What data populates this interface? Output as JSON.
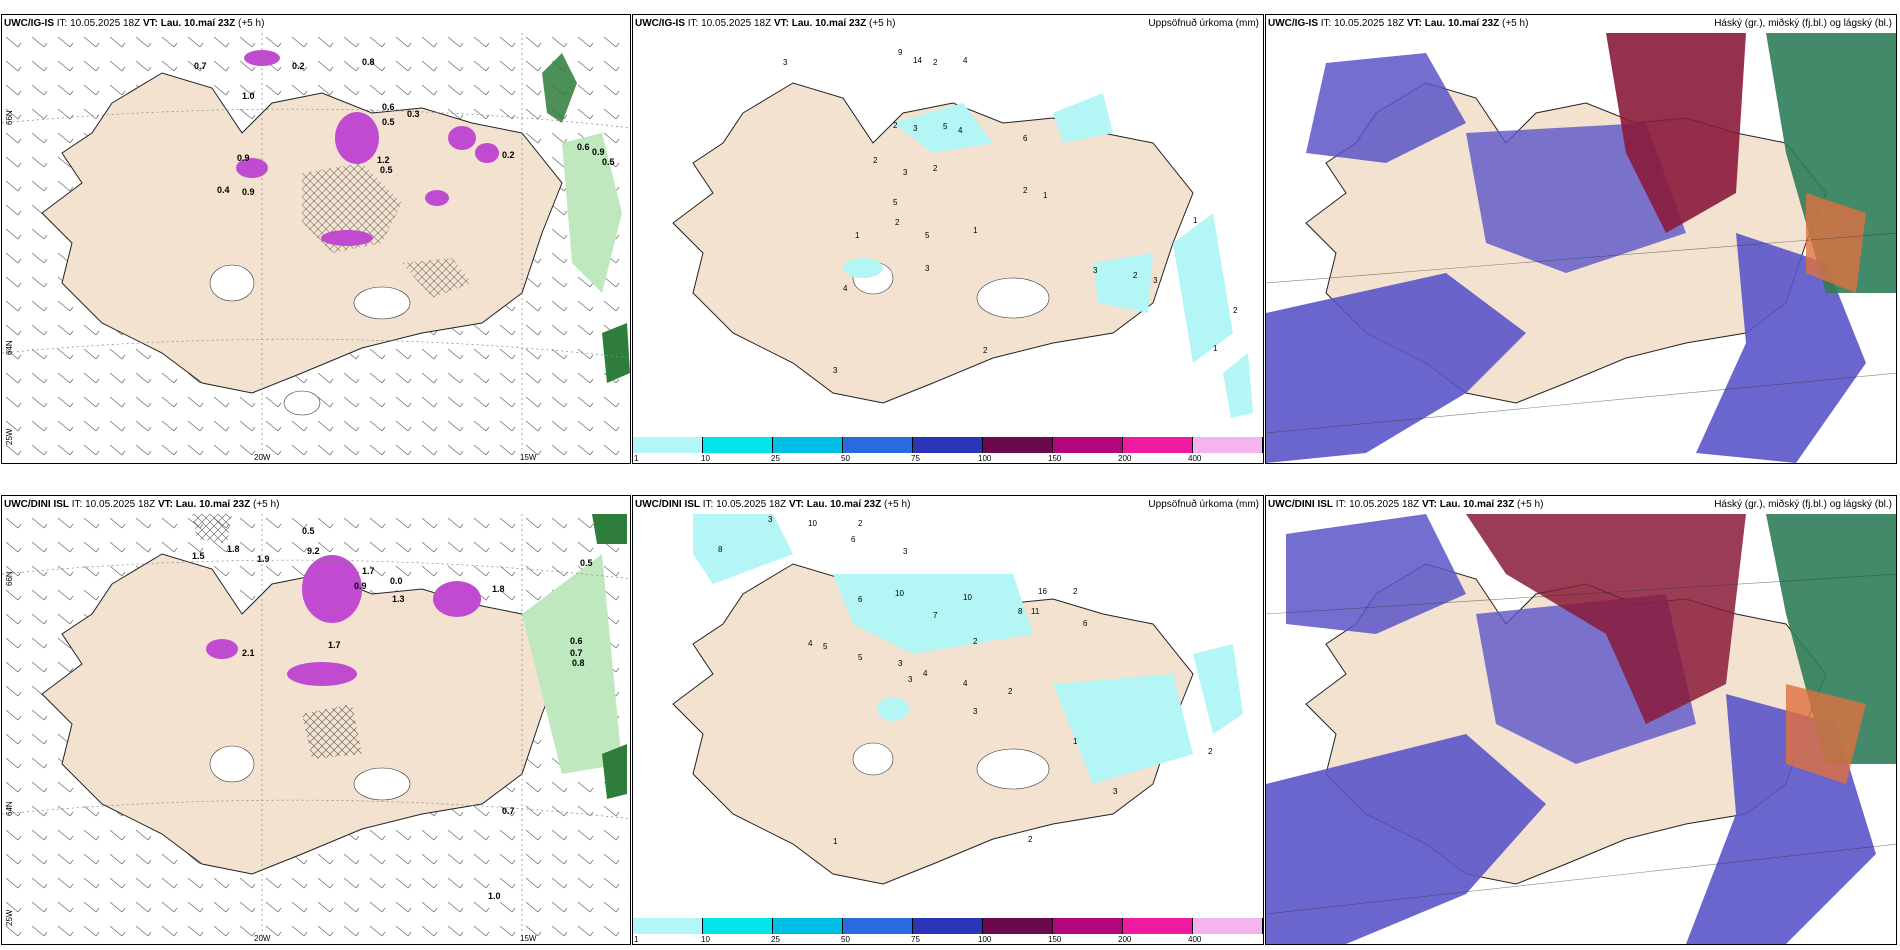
{
  "panels": [
    {
      "model": "UWC/IG-IS",
      "init": "IT: 10.05.2025 18Z",
      "valid": "VT: Lau. 10.maí 23Z",
      "lead": "(+5 h)",
      "right_label": ""
    },
    {
      "model": "UWC/IG-IS",
      "init": "IT: 10.05.2025 18Z",
      "valid": "VT: Lau. 10.maí 23Z",
      "lead": "(+5 h)",
      "right_label": "Uppsöfnuð úrkoma (mm)"
    },
    {
      "model": "UWC/IG-IS",
      "init": "IT: 10.05.2025 18Z",
      "valid": "VT: Lau. 10.maí 23Z",
      "lead": "(+5 h)",
      "right_label": "Háský (gr.), miðský (fj.bl.) og lágský (bl.)"
    },
    {
      "model": "UWC/DINI ISL",
      "init": "IT: 10.05.2025 18Z",
      "valid": "VT: Lau. 10.maí 23Z",
      "lead": "(+5 h)",
      "right_label": ""
    },
    {
      "model": "UWC/DINI ISL",
      "init": "IT: 10.05.2025 18Z",
      "valid": "VT: Lau. 10.maí 23Z",
      "lead": "(+5 h)",
      "right_label": "Uppsöfnuð úrkoma (mm)"
    },
    {
      "model": "UWC/DINI ISL",
      "init": "IT: 10.05.2025 18Z",
      "valid": "VT: Lau. 10.maí 23Z",
      "lead": "(+5 h)",
      "right_label": "Háský (gr.), miðský (fj.bl.) og lágský (bl.)"
    }
  ],
  "axes": {
    "lon_20": "20W",
    "lon_15": "15W",
    "lat_66": "66N",
    "lat_64": "64N",
    "lat_63": "63N",
    "lon_25": "25W"
  },
  "colorbar": {
    "ticks": [
      "1",
      "10",
      "25",
      "50",
      "75",
      "100",
      "150",
      "200",
      "400"
    ],
    "colors": [
      "#b4f5f5",
      "#00e5e8",
      "#00bfe6",
      "#2a6ae0",
      "#2a35b8",
      "#6a0a4a",
      "#b0087a",
      "#f01aa0",
      "#f4b4ee"
    ]
  },
  "labels_top_left": [
    "0.7",
    "0.2",
    "0.8",
    "0.5",
    "1.0",
    "0.6",
    "0.3",
    "0.9",
    "0.5",
    "1.2",
    "0.6",
    "0.9",
    "0.5",
    "0.2",
    "0.4",
    "0.9"
  ],
  "labels_bottom_left": [
    "0.5",
    "1.5",
    "1.8",
    "9.2",
    "1.9",
    "1.7",
    "0.0",
    "1.3",
    "0.9",
    "1.8",
    "0.5",
    "0.6",
    "0.7",
    "0.8",
    "2.1",
    "1.7",
    "0.7",
    "1.0"
  ],
  "labels_top_mid": [
    "3",
    "9",
    "14",
    "2",
    "4",
    "2",
    "3",
    "5",
    "4",
    "6",
    "2",
    "3",
    "2",
    "1",
    "5",
    "2",
    "1",
    "2",
    "5",
    "1",
    "3",
    "4",
    "3",
    "2",
    "1",
    "2",
    "1",
    "3",
    "2",
    "3"
  ],
  "labels_bottom_mid": [
    "3",
    "10",
    "2",
    "6",
    "8",
    "3",
    "6",
    "10",
    "10",
    "16",
    "2",
    "7",
    "8",
    "11",
    "4",
    "5",
    "6",
    "3",
    "2",
    "5",
    "4",
    "3",
    "4",
    "2",
    "3",
    "1",
    "2",
    "3",
    "1",
    "2"
  ],
  "colors": {
    "land": "#f3e2cf",
    "land_edge": "#222",
    "prec_light": "#b4f5f5",
    "green": "#7fd67f",
    "magenta": "#c04ad0",
    "cloud_blue": "#5b55c8",
    "cloud_maroon": "#8a1a3a",
    "cloud_green": "#2e7d5a"
  }
}
